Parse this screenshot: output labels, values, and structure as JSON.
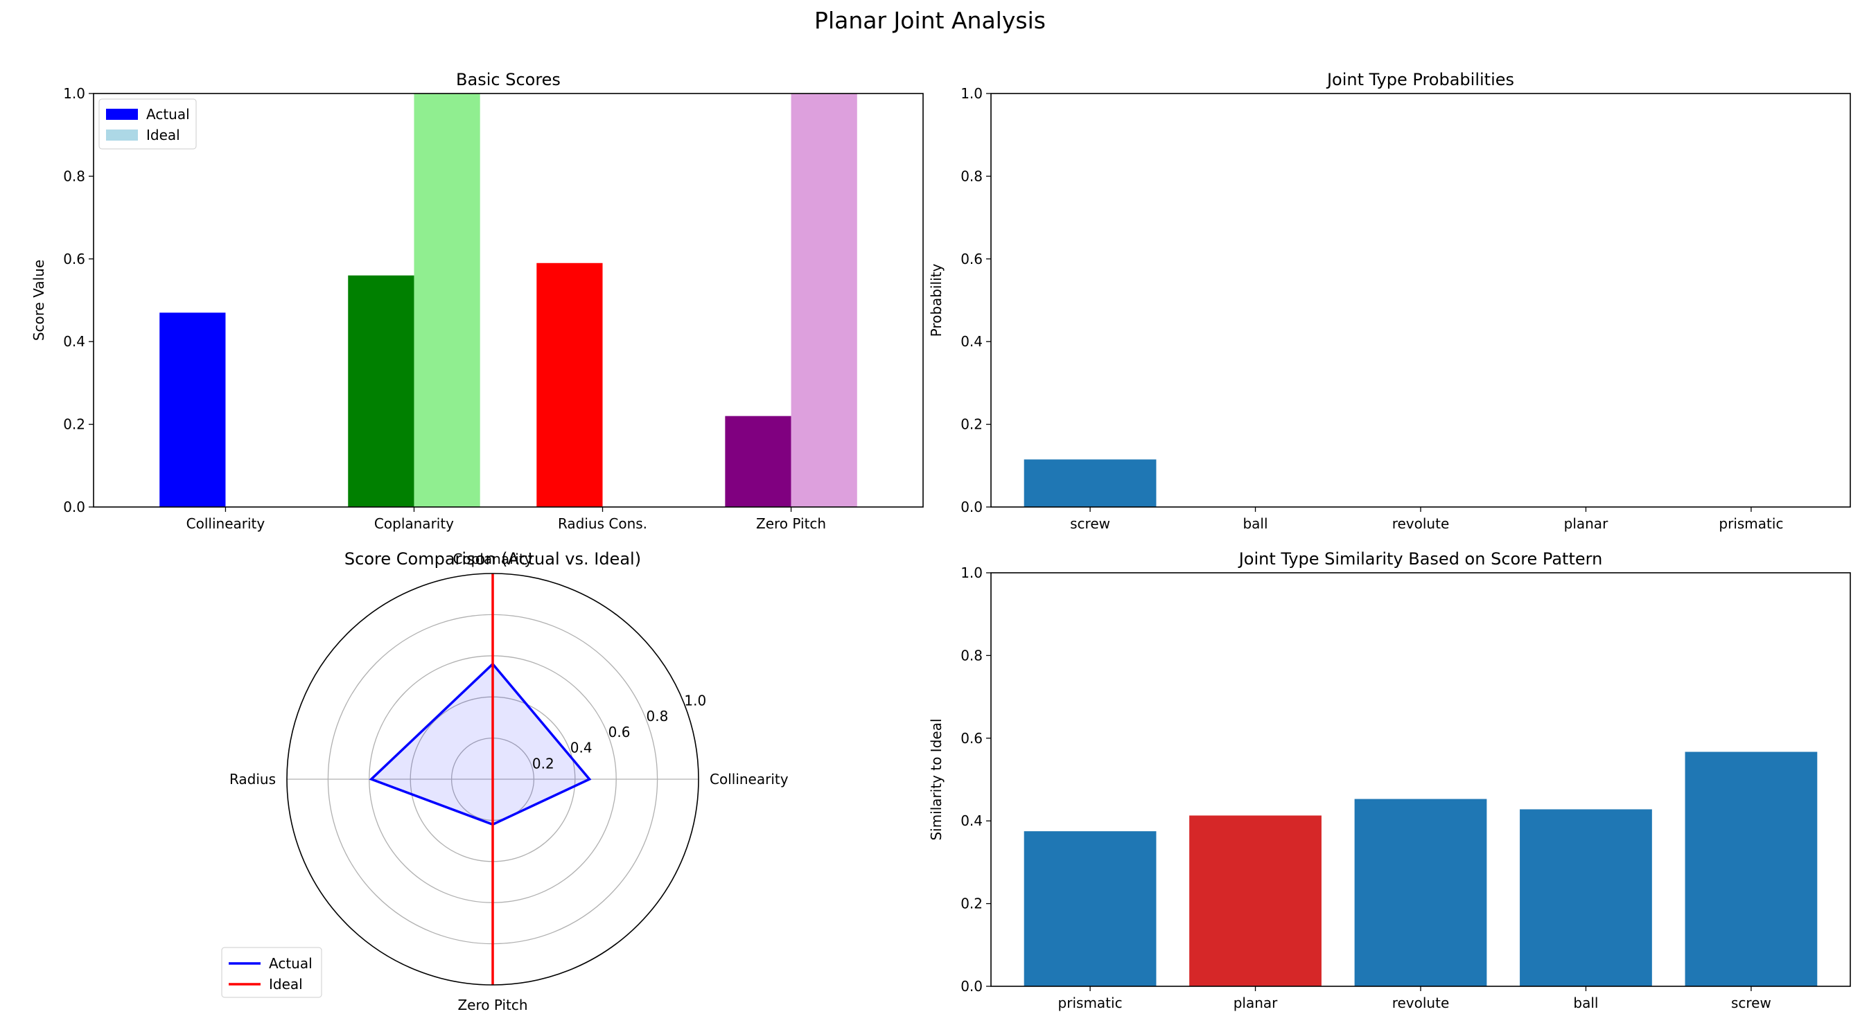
{
  "figure": {
    "title": "Planar Joint Analysis"
  },
  "chart_data": [
    {
      "type": "bar",
      "title": "Basic Scores",
      "xlabel": "",
      "ylabel": "Score Value",
      "ylim": [
        0,
        1.0
      ],
      "yticks": [
        "0.0",
        "0.2",
        "0.4",
        "0.6",
        "0.8",
        "1.0"
      ],
      "categories": [
        "Collinearity",
        "Coplanarity",
        "Radius Cons.",
        "Zero Pitch"
      ],
      "series": [
        {
          "name": "Actual",
          "values": [
            0.47,
            0.56,
            0.59,
            0.22
          ],
          "colors": [
            "#0000ff",
            "#008000",
            "#ff0000",
            "#800080"
          ],
          "legend_color": "#0000ff"
        },
        {
          "name": "Ideal",
          "values": [
            0.0,
            1.0,
            0.0,
            1.0
          ],
          "colors": [
            "#add8e6",
            "#90ee90",
            "#ffa07a",
            "#dda0dd"
          ],
          "legend_color": "#add8e6"
        }
      ],
      "legend": "upper-left",
      "grid": false
    },
    {
      "type": "bar",
      "title": "Joint Type Probabilities",
      "xlabel": "",
      "ylabel": "Probability",
      "ylim": [
        0,
        1.0
      ],
      "yticks": [
        "0.0",
        "0.2",
        "0.4",
        "0.6",
        "0.8",
        "1.0"
      ],
      "categories": [
        "screw",
        "ball",
        "revolute",
        "planar",
        "prismatic"
      ],
      "values": [
        0.115,
        0.0,
        0.0,
        0.0,
        0.0
      ],
      "color": "#1f77b4",
      "grid": false
    },
    {
      "type": "radar",
      "title": "Score Comparison (Actual vs. Ideal)",
      "axes": [
        "Collinearity",
        "Coplanarity",
        "Radius",
        "Zero Pitch"
      ],
      "rlim": [
        0,
        1.0
      ],
      "rticks": [
        "0.2",
        "0.4",
        "0.6",
        "0.8",
        "1.0"
      ],
      "series": [
        {
          "name": "Actual",
          "values": [
            0.47,
            0.56,
            0.59,
            0.22
          ],
          "color": "#0000ff",
          "fill": "#0000ff"
        },
        {
          "name": "Ideal",
          "values": [
            0.0,
            1.0,
            0.0,
            1.0
          ],
          "color": "#ff0000"
        }
      ],
      "legend": "lower-left",
      "grid": true
    },
    {
      "type": "bar",
      "title": "Joint Type Similarity Based on Score Pattern",
      "xlabel": "",
      "ylabel": "Similarity to Ideal",
      "ylim": [
        0,
        1.0
      ],
      "yticks": [
        "0.0",
        "0.2",
        "0.4",
        "0.6",
        "0.8",
        "1.0"
      ],
      "categories": [
        "prismatic",
        "planar",
        "revolute",
        "ball",
        "screw"
      ],
      "values": [
        0.375,
        0.413,
        0.453,
        0.428,
        0.567
      ],
      "colors": [
        "#1f77b4",
        "#d62728",
        "#1f77b4",
        "#1f77b4",
        "#1f77b4"
      ],
      "grid": false
    }
  ]
}
